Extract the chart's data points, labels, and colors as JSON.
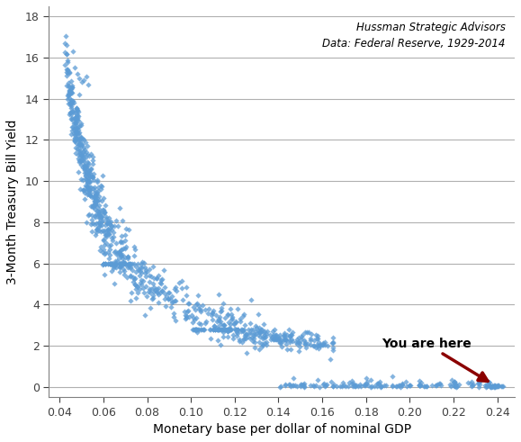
{
  "xlabel": "Monetary base per dollar of nominal GDP",
  "ylabel": "3-Month Treasury Bill Yield",
  "annotation_text": "You are here",
  "source_text": "Hussman Strategic Advisors\nData: Federal Reserve, 1929-2014",
  "marker_color": "#5b9bd5",
  "annotation_color": "#8B0000",
  "xlim": [
    0.035,
    0.248
  ],
  "ylim": [
    -0.5,
    18.5
  ],
  "xticks": [
    0.04,
    0.06,
    0.08,
    0.1,
    0.12,
    0.14,
    0.16,
    0.18,
    0.2,
    0.22,
    0.24
  ],
  "yticks": [
    0,
    2,
    4,
    6,
    8,
    10,
    12,
    14,
    16,
    18
  ],
  "figsize": [
    5.79,
    4.91
  ],
  "dpi": 100
}
